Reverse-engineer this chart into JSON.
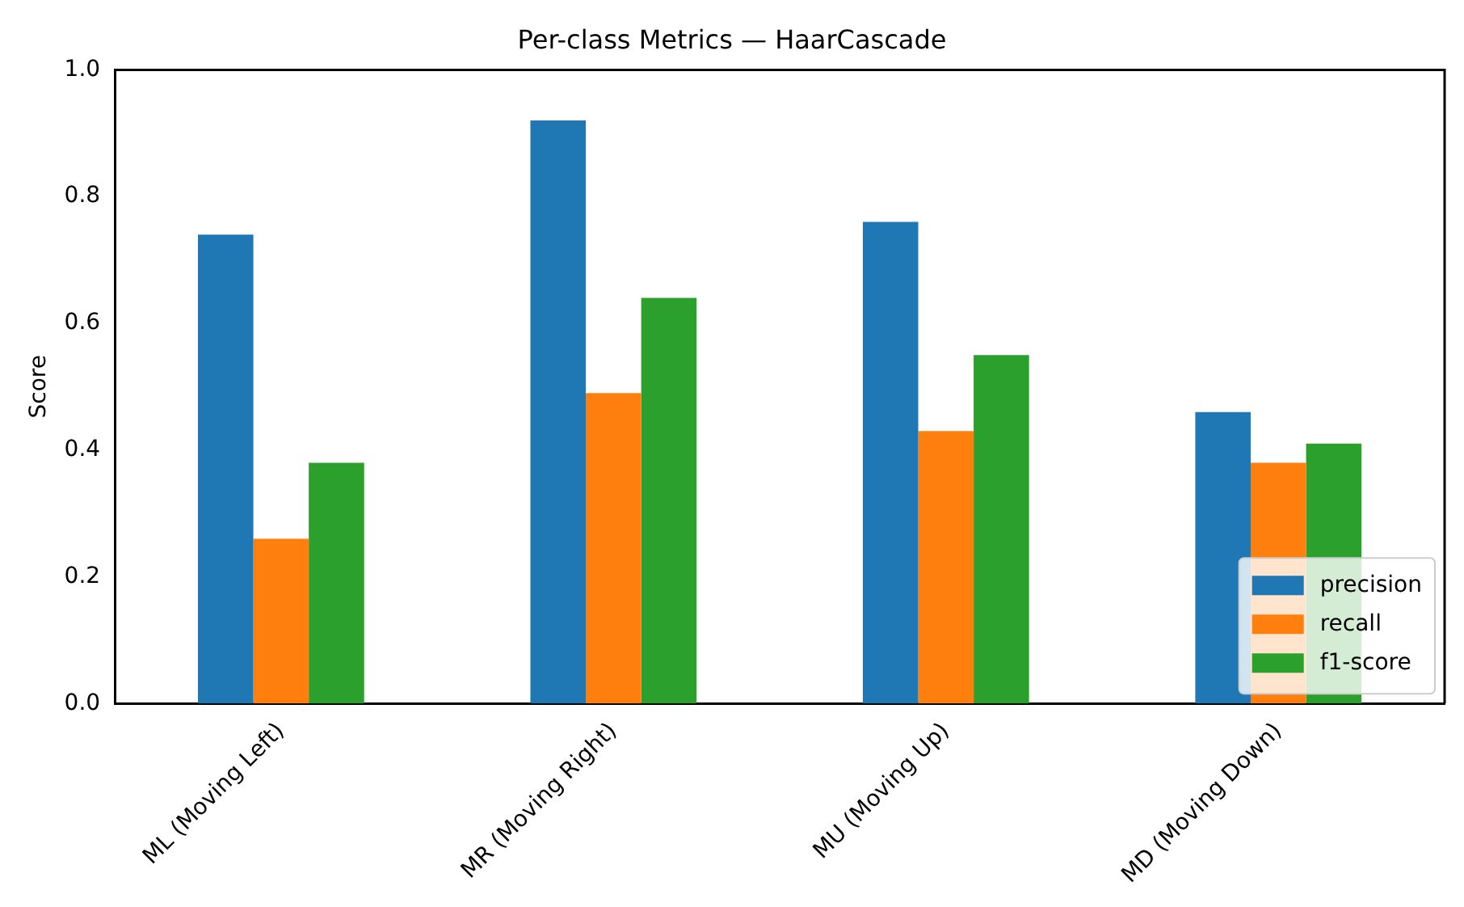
{
  "chart_data": {
    "type": "bar",
    "title": "Per-class Metrics — HaarCascade",
    "ylabel": "Score",
    "categories": [
      "ML (Moving Left)",
      "MR (Moving Right)",
      "MU (Moving Up)",
      "MD (Moving Down)"
    ],
    "series": [
      {
        "name": "precision",
        "color": "#1f77b4",
        "values": [
          0.74,
          0.92,
          0.76,
          0.46
        ]
      },
      {
        "name": "recall",
        "color": "#ff7f0e",
        "values": [
          0.26,
          0.49,
          0.43,
          0.38
        ]
      },
      {
        "name": "f1-score",
        "color": "#2ca02c",
        "values": [
          0.38,
          0.64,
          0.55,
          0.41
        ]
      }
    ],
    "ylim": [
      0,
      1
    ],
    "yticks": [
      {
        "value": 0,
        "label": "0.0"
      },
      0.2,
      0.4,
      0.6,
      0.8,
      {
        "value": 1,
        "label": "1.0"
      }
    ],
    "grid": false,
    "legend": "bottom right"
  }
}
